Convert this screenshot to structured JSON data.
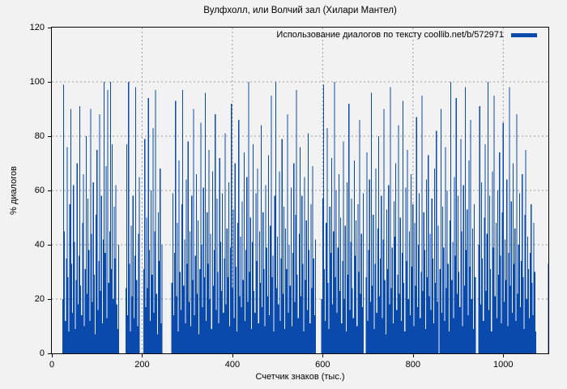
{
  "colors": {
    "bar": "#0b4aad",
    "background": "#f2f2f2",
    "grid": "#9a9a9a",
    "axis": "#000000",
    "text": "#000000"
  },
  "chart_data": {
    "type": "bar",
    "subtype": "impulses",
    "title": "Вулфхолл, или Волчий зал (Хилари Мантел)",
    "xlabel": "Счетчик знаков (тыс.)",
    "ylabel": "% диалогов",
    "xlim": [
      0,
      1100
    ],
    "ylim": [
      0,
      120
    ],
    "x_ticks": [
      0,
      200,
      400,
      600,
      800,
      1000
    ],
    "y_ticks": [
      0,
      20,
      40,
      60,
      80,
      100,
      120
    ],
    "grid": true,
    "legend_position": "top-right-inside",
    "series": [
      {
        "name": "Использование диалогов по тексту coollib.net/b/572971",
        "color": "#0b4aad",
        "x_start": 22,
        "x_step": 2,
        "values": [
          0,
          20,
          99,
          45,
          12,
          35,
          76,
          28,
          8,
          55,
          90,
          33,
          15,
          62,
          41,
          9,
          27,
          70,
          18,
          36,
          91,
          25,
          14,
          48,
          66,
          10,
          31,
          80,
          22,
          57,
          38,
          12,
          90,
          44,
          19,
          63,
          29,
          7,
          51,
          75,
          16,
          34,
          88,
          23,
          58,
          11,
          42,
          100,
          37,
          69,
          13,
          97,
          26,
          45,
          100,
          31,
          77,
          20,
          54,
          35,
          62,
          18,
          9,
          40,
          0,
          0,
          0,
          0,
          0,
          0,
          0,
          24,
          77,
          14,
          100,
          33,
          8,
          47,
          21,
          58,
          13,
          36,
          98,
          27,
          10,
          44,
          65,
          0,
          0,
          0,
          0,
          31,
          79,
          17,
          50,
          24,
          94,
          38,
          12,
          60,
          29,
          83,
          15,
          45,
          97,
          22,
          7,
          52,
          34,
          68,
          11,
          40,
          0,
          0,
          0,
          0,
          0,
          0,
          0,
          0,
          0,
          0,
          26,
          59,
          14,
          37,
          93,
          21,
          48,
          8,
          71,
          30,
          16,
          55,
          97,
          25,
          42,
          11,
          64,
          33,
          78,
          19,
          45,
          10,
          58,
          27,
          90,
          14,
          36,
          66,
          22,
          49,
          7,
          31,
          85,
          40,
          17,
          61,
          28,
          96,
          12,
          52,
          33,
          75,
          20,
          44,
          9,
          67,
          25,
          38,
          88,
          16,
          57,
          30,
          11,
          72,
          41,
          23,
          59,
          15,
          35,
          81,
          18,
          46,
          28,
          63,
          10,
          39,
          92,
          24,
          53,
          13,
          70,
          32,
          8,
          48,
          86,
          21,
          43,
          17,
          56,
          27,
          74,
          12,
          38,
          65,
          19,
          100,
          30,
          50,
          9,
          41,
          77,
          23,
          15,
          59,
          34,
          68,
          11,
          45,
          26,
          84,
          17,
          52,
          31,
          10,
          62,
          39,
          21,
          73,
          14,
          47,
          95,
          28,
          36,
          8,
          58,
          100,
          24,
          43,
          18,
          67,
          12,
          35,
          79,
          22,
          54,
          9,
          46,
          31,
          88,
          15,
          40,
          25,
          61,
          10,
          37,
          70,
          19,
          51,
          97,
          29,
          13,
          44,
          76,
          21,
          58,
          33,
          8,
          65,
          27,
          49,
          16,
          81,
          38,
          11,
          55,
          24,
          69,
          35,
          14,
          42,
          0,
          0,
          0,
          0,
          0,
          0,
          20,
          57,
          99,
          31,
          12,
          48,
          83,
          26,
          9,
          54,
          37,
          72,
          18,
          45,
          100,
          28,
          60,
          15,
          39,
          66,
          23,
          50,
          11,
          34,
          78,
          20,
          47,
          8,
          63,
          29,
          92,
          16,
          41,
          57,
          24,
          13,
          71,
          36,
          49,
          10,
          55,
          30,
          86,
          22,
          44,
          17,
          59,
          0,
          0,
          28,
          74,
          12,
          38,
          64,
          19,
          96,
          25,
          51,
          9,
          33,
          68,
          15,
          46,
          80,
          21,
          35,
          58,
          13,
          42,
          90,
          27,
          7,
          53,
          31,
          62,
          18,
          98,
          24,
          39,
          11,
          56,
          43,
          70,
          16,
          29,
          84,
          22,
          50,
          12,
          37,
          93,
          26,
          8,
          61,
          34,
          75,
          20,
          45,
          14,
          66,
          32,
          55,
          10,
          48,
          25,
          87,
          17,
          40,
          59,
          13,
          30,
          95,
          23,
          52,
          38,
          9,
          64,
          28,
          73,
          21,
          44,
          16,
          57,
          35,
          11,
          68,
          26,
          82,
          19,
          47,
          0,
          31,
          90,
          15,
          54,
          39,
          12,
          76,
          24,
          60,
          33,
          8,
          49,
          100,
          27,
          41,
          13,
          65,
          36,
          94,
          22,
          58,
          30,
          17,
          79,
          45,
          10,
          62,
          25,
          98,
          38,
          53,
          14,
          71,
          32,
          86,
          20,
          46,
          9,
          55,
          28,
          0,
          0,
          0,
          40,
          91,
          18,
          63,
          35,
          12,
          50,
          77,
          23,
          44,
          100,
          16,
          58,
          31,
          8,
          67,
          39,
          95,
          21,
          48,
          13,
          60,
          29,
          74,
          36,
          11,
          52,
          85,
          19,
          42,
          27,
          64,
          10,
          37,
          98,
          25,
          56,
          15,
          70,
          33,
          46,
          12,
          88,
          22,
          40,
          59,
          17,
          34,
          66,
          28,
          9,
          51,
          75,
          20,
          43,
          31,
          13,
          37,
          55,
          26,
          14,
          48,
          30,
          8,
          0,
          0,
          0,
          0,
          0,
          0,
          0,
          0,
          0,
          0,
          0,
          0,
          0,
          33
        ]
      }
    ]
  }
}
